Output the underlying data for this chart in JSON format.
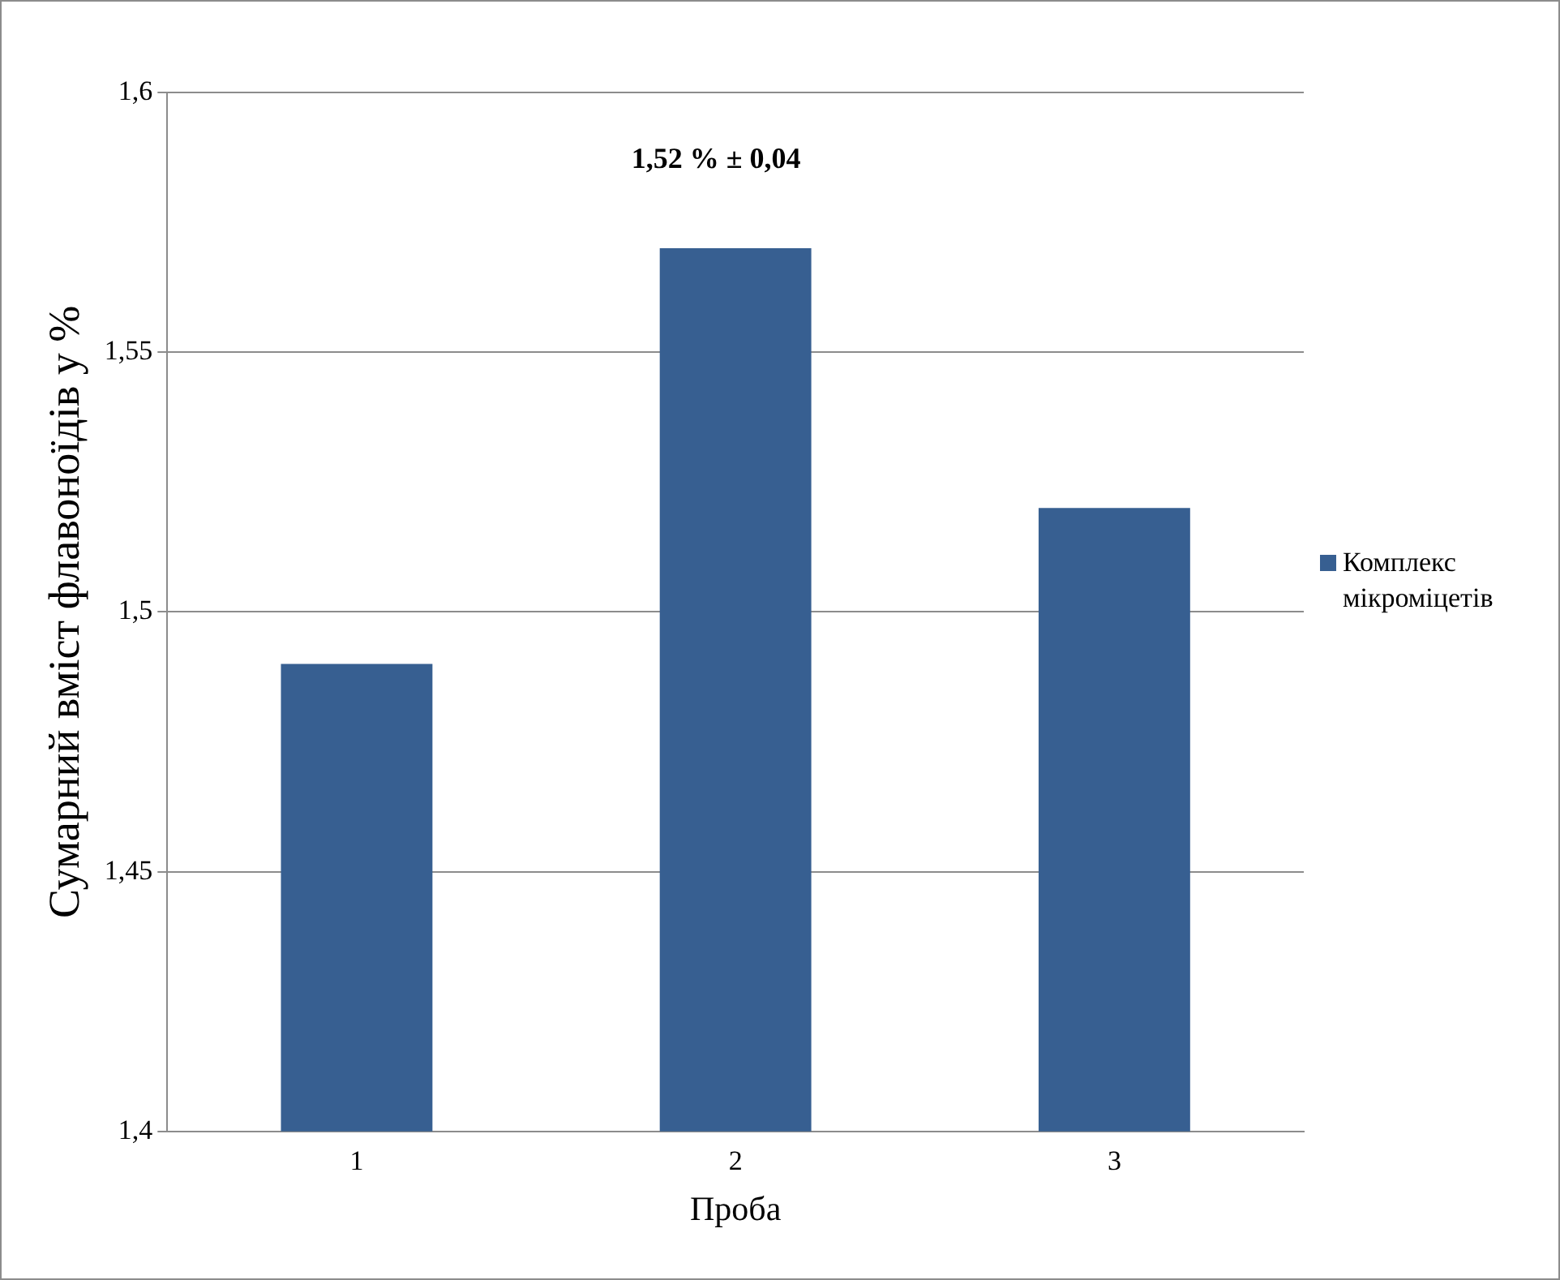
{
  "chart_data": {
    "type": "bar",
    "xlabel": "Проба",
    "ylabel": "Сумарний вміст флавоноїдів у %",
    "categories": [
      "1",
      "2",
      "3"
    ],
    "series": [
      {
        "name": "Комплекс мікроміцетів",
        "color": "#375f91",
        "values": [
          1.49,
          1.57,
          1.52
        ]
      }
    ],
    "ylim": [
      1.4,
      1.6
    ],
    "yticks": [
      {
        "value": 1.4,
        "label": "1,4"
      },
      {
        "value": 1.45,
        "label": "1,45"
      },
      {
        "value": 1.5,
        "label": "1,5"
      },
      {
        "value": 1.55,
        "label": "1,55"
      },
      {
        "value": 1.6,
        "label": "1,6"
      }
    ],
    "grid": "y",
    "legend": "right",
    "annotations": [
      "1,52 % ± 0,04"
    ]
  }
}
